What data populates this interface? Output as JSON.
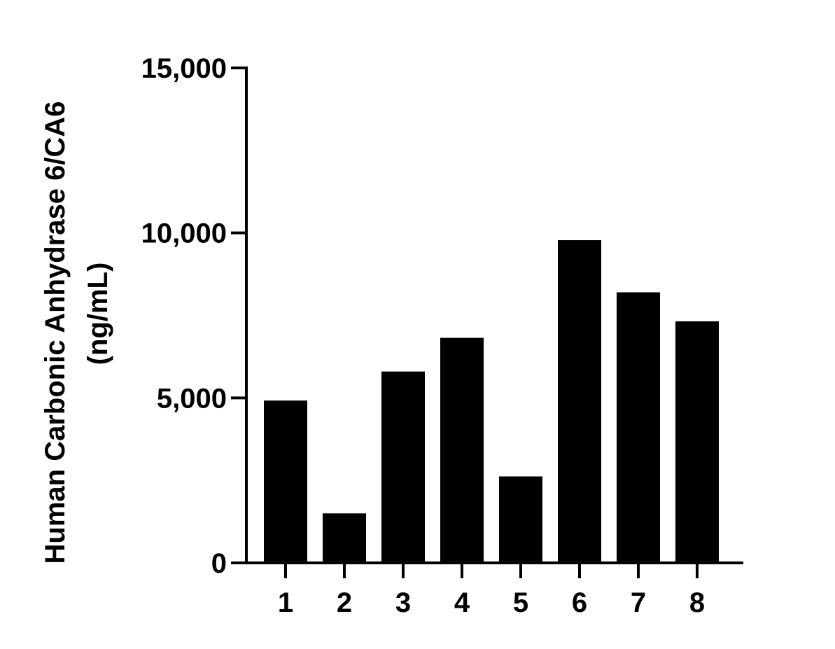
{
  "chart_data": {
    "type": "bar",
    "categories": [
      "1",
      "2",
      "3",
      "4",
      "5",
      "6",
      "7",
      "8"
    ],
    "values": [
      4920,
      1500,
      5800,
      6820,
      2620,
      9780,
      8200,
      7320
    ],
    "title": "",
    "xlabel": "",
    "ylabel_line1": "Human Carbonic Anhydrase 6/CA6",
    "ylabel_line2": "(ng/mL)",
    "ylim": [
      0,
      15000
    ],
    "yticks": [
      0,
      5000,
      10000,
      15000
    ],
    "ytick_labels": [
      "0",
      "5,000",
      "10,000",
      "15,000"
    ],
    "grid": false,
    "bar_color": "#000000"
  }
}
